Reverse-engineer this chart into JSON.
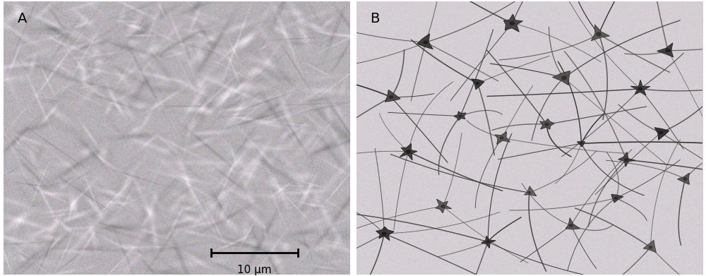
{
  "figsize": [
    10.0,
    3.91
  ],
  "dpi": 100,
  "bg_mean_A": 0.72,
  "bg_std_A": 0.035,
  "bg_mean_B": 0.82,
  "bg_std_B": 0.018,
  "panel_label_fontsize": 14,
  "panel_label_color": "#000000",
  "scale_bar_text": "10 μm",
  "scale_bar_fontsize": 11,
  "figure_bg": "#ffffff",
  "border_color": "#cccccc"
}
